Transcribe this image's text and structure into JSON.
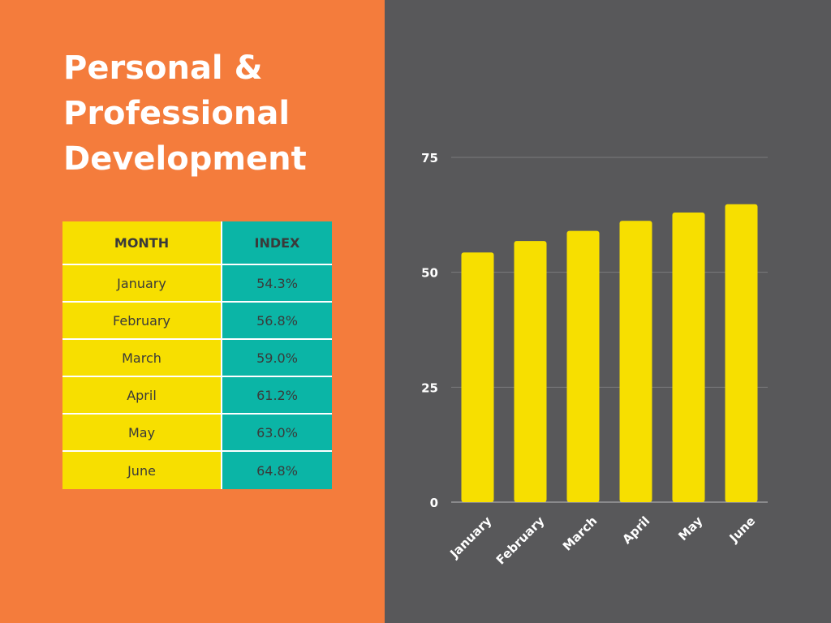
{
  "title_lines": [
    "Personal &",
    "Professional",
    "Development"
  ],
  "table": {
    "headers": [
      "MONTH",
      "INDEX"
    ],
    "rows": [
      [
        "January",
        "54.3%"
      ],
      [
        "February",
        "56.8%"
      ],
      [
        "March",
        "59.0%"
      ],
      [
        "April",
        "61.2%"
      ],
      [
        "May",
        "63.0%"
      ],
      [
        "June",
        "64.8%"
      ]
    ]
  },
  "colors": {
    "left_background": "#f47c3c",
    "right_background": "#58585a",
    "month_column": "#f7df00",
    "index_column": "#0bb5a6",
    "bar": "#f7df00",
    "title_text": "#ffffff"
  },
  "chart_data": {
    "type": "bar",
    "categories": [
      "January",
      "February",
      "March",
      "April",
      "May",
      "June"
    ],
    "values": [
      54.3,
      56.8,
      59.0,
      61.2,
      63.0,
      64.8
    ],
    "ylim": [
      0,
      75
    ],
    "yticks": [
      0,
      25,
      50,
      75
    ],
    "grid": true,
    "xlabel": "",
    "ylabel": ""
  }
}
